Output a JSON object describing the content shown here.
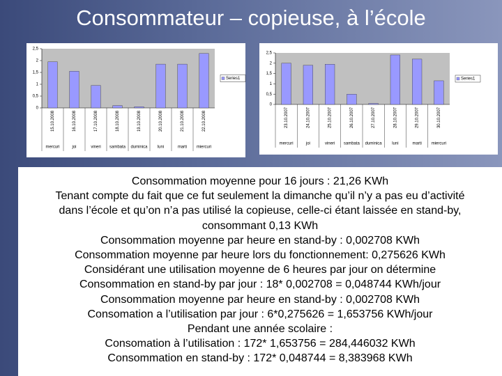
{
  "title": "Consommateur – copieuse, à l’école",
  "chart_data": [
    {
      "type": "bar",
      "color": "#9999ff",
      "legend": "right",
      "categories": [
        "15.10.2008",
        "16.10.2008",
        "17.10.2008",
        "18.10.2008",
        "19.10.2008",
        "20.10.2008",
        "21.10.2008",
        "22.10.2008"
      ],
      "day_labels": [
        "mercuri",
        "joi",
        "vineri",
        "sambata",
        "duminica",
        "luni",
        "marti",
        "miercuri"
      ],
      "series": [
        {
          "name": "Series1",
          "color": "#9999ff",
          "values": [
            1.95,
            1.55,
            0.95,
            0.1,
            0.05,
            1.85,
            1.85,
            2.3
          ]
        }
      ],
      "ylim": [
        0,
        2.5
      ],
      "yticks": [
        0,
        {
          "value": 0.5,
          "label": "0,5"
        },
        1,
        {
          "value": 1.5,
          "label": "1,5"
        },
        2,
        {
          "value": 2.5,
          "label": "2,5"
        }
      ]
    },
    {
      "type": "bar",
      "color": "#9999ff",
      "legend": "right",
      "categories": [
        "23.10.2007",
        "24.10.2007",
        "25.10.2007",
        "26.10.2007",
        "27.10.2007",
        "28.10.2007",
        "29.10.2007",
        "30.10.2007"
      ],
      "day_labels": [
        "mercuri",
        "joi",
        "vineri",
        "sambata",
        "duminica",
        "luni",
        "marti",
        "miercuri"
      ],
      "series": [
        {
          "name": "Series1",
          "color": "#9999ff",
          "values": [
            2.0,
            1.9,
            1.95,
            0.5,
            0.05,
            2.4,
            2.2,
            1.15
          ]
        }
      ],
      "ylim": [
        0,
        2.5
      ],
      "yticks": [
        0,
        {
          "value": 0.5,
          "label": "0,5"
        },
        1,
        {
          "value": 1.5,
          "label": "1,5"
        },
        2,
        {
          "value": 2.5,
          "label": "2,5"
        }
      ]
    }
  ],
  "text": {
    "lines": [
      "Consommation moyenne pour 16 jours : 21,26 KWh",
      "Tenant compte du fait que ce fut seulement la dimanche qu’il n’y a pas eu d’activité",
      "dans l’école et qu’on n’a pas utilisé la copieuse, celle-ci étant laissée en stand-by,",
      "consommant 0,13 KWh",
      "Consommation moyenne par heure en stand-by : 0,002708 KWh",
      "Consommation moyenne par heure lors du fonctionnement: 0,275626 KWh",
      "Considérant une utilisation moyenne de 6 heures par jour on détermine",
      "Consommation en stand-by par jour : 18* 0,002708 = 0,048744 KWh/jour",
      "Consommation moyenne par heure en stand-by : 0,002708 KWh",
      "Consomation a l’utilisation par jour : 6*0,275626 = 1,653756 KWh/jour",
      "Pendant une année scolaire :",
      "Consomation à l’utilisation : 172* 1,653756 = 284,446032 KWh",
      "Consommation en stand-by : 172* 0,048744 = 8,383968 KWh"
    ]
  }
}
